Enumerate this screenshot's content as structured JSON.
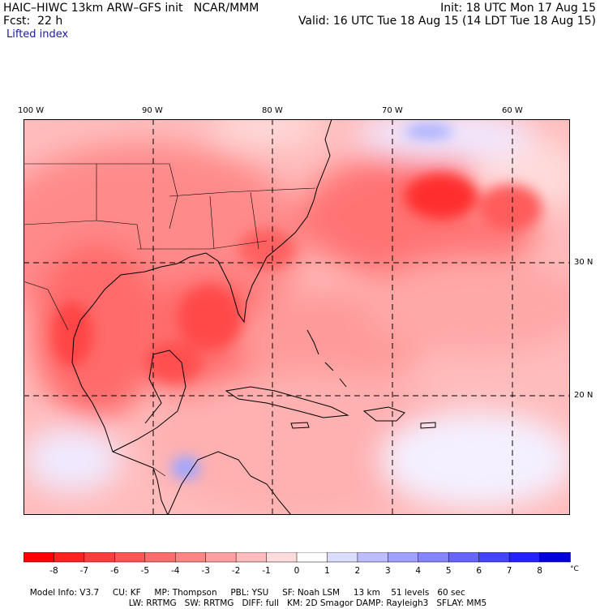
{
  "header": {
    "title": "HAIC–HIWC 13km ARW–GFS init   NCAR/MMM",
    "init": "Init: 18 UTC Mon 17 Aug 15",
    "fcst": "Fcst:  22 h",
    "valid": "Valid: 16 UTC Tue 18 Aug 15 (14 LDT Tue 18 Aug 15)",
    "field": "Lifted index"
  },
  "map": {
    "lon_labels": [
      "100 W",
      "90 W",
      "80 W",
      "70 W",
      "60 W"
    ],
    "lat_labels": [
      "30 N",
      "20 N"
    ],
    "lon_range": [
      -100,
      -54
    ],
    "lat_range": [
      11,
      41
    ],
    "gridlines": "dashed"
  },
  "colorbar": {
    "tick_labels": [
      "-8",
      "-7",
      "-6",
      "-5",
      "-4",
      "-3",
      "-2",
      "-1",
      "0",
      "1",
      "2",
      "3",
      "4",
      "5",
      "6",
      "7",
      "8"
    ],
    "unit": "°C",
    "colors": [
      "#ff0000",
      "#ff2222",
      "#ff3d3d",
      "#ff5555",
      "#ff6c6c",
      "#ff8585",
      "#ffa0a0",
      "#ffbcbc",
      "#ffdcdc",
      "#ffffff",
      "#dcdcff",
      "#bcbcff",
      "#a0a0ff",
      "#8585ff",
      "#6666ff",
      "#4444ff",
      "#2222ff",
      "#0000dd"
    ]
  },
  "footer": {
    "line1": [
      "Model Info: V3.7",
      "CU: KF",
      "MP: Thompson",
      "PBL: YSU",
      "SF: Noah LSM",
      "13 km",
      "51 levels",
      "60 sec"
    ],
    "line2": [
      "LW: RRTMG",
      "SW: RRTMG",
      "DIFF: full",
      "KM: 2D Smagor",
      "DAMP: Rayleigh3",
      "SFLAY: MM5"
    ]
  }
}
